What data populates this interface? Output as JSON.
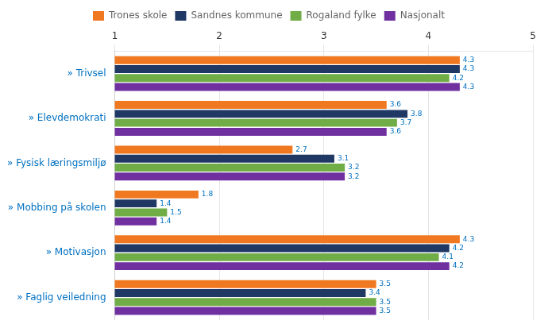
{
  "chart_data": {
    "type": "bar",
    "orientation": "horizontal",
    "categories": [
      "» Trivsel",
      "» Elevdemokrati",
      "» Fysisk læringsmiljø",
      "» Mobbing på skolen",
      "» Motivasjon",
      "» Faglig veiledning"
    ],
    "series": [
      {
        "name": "Trones skole",
        "color": "#F07820",
        "values": [
          4.3,
          3.6,
          2.7,
          1.8,
          4.3,
          3.5
        ]
      },
      {
        "name": "Sandnes kommune",
        "color": "#1F3864",
        "values": [
          4.3,
          3.8,
          3.1,
          1.4,
          4.2,
          3.4
        ]
      },
      {
        "name": "Rogaland fylke",
        "color": "#70AD47",
        "values": [
          4.2,
          3.7,
          3.2,
          1.5,
          4.1,
          3.5
        ]
      },
      {
        "name": "Nasjonalt",
        "color": "#7030A0",
        "values": [
          4.3,
          3.6,
          3.2,
          1.4,
          4.2,
          3.5
        ]
      }
    ],
    "xlim": [
      1,
      5
    ],
    "xticks": [
      1,
      2,
      3,
      4,
      5
    ],
    "grid": true,
    "legend": "top",
    "data_labels": true
  }
}
